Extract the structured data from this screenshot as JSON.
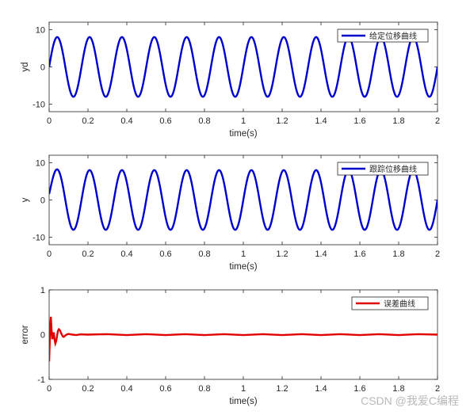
{
  "chart_data": [
    {
      "type": "line",
      "xlabel": "time(s)",
      "ylabel": "yd",
      "xlim": [
        0,
        2
      ],
      "ylim": [
        -12,
        12
      ],
      "xticks": [
        0,
        0.2,
        0.4,
        0.6,
        0.8,
        1,
        1.2,
        1.4,
        1.6,
        1.8,
        2
      ],
      "xtick_labels": [
        "0",
        "0.2",
        "0.4",
        "0.6",
        "0.8",
        "1",
        "1.2",
        "1.4",
        "1.6",
        "1.8",
        "2"
      ],
      "yticks": [
        -10,
        0,
        10
      ],
      "ytick_labels": [
        "-10",
        "0",
        "10"
      ],
      "legend_position": "top-right",
      "series": [
        {
          "name": "给定位移曲线",
          "color": "#0000cc",
          "function": "y = 8*sin(12*pi*t)",
          "amplitude": 8,
          "frequency_hz": 6
        }
      ]
    },
    {
      "type": "line",
      "xlabel": "time(s)",
      "ylabel": "y",
      "xlim": [
        0,
        2
      ],
      "ylim": [
        -12,
        12
      ],
      "xticks": [
        0,
        0.2,
        0.4,
        0.6,
        0.8,
        1,
        1.2,
        1.4,
        1.6,
        1.8,
        2
      ],
      "xtick_labels": [
        "0",
        "0.2",
        "0.4",
        "0.6",
        "0.8",
        "1",
        "1.2",
        "1.4",
        "1.6",
        "1.8",
        "2"
      ],
      "yticks": [
        -10,
        0,
        10
      ],
      "ytick_labels": [
        "-10",
        "0",
        "10"
      ],
      "legend_position": "top-right",
      "series": [
        {
          "name": "跟踪位移曲线",
          "color": "#0000cc",
          "function": "y ≈ 8*sin(12*pi*t) with small initial transient (starts near 1.6)",
          "amplitude": 8,
          "frequency_hz": 6,
          "initial_value": 1.6
        }
      ]
    },
    {
      "type": "line",
      "xlabel": "time(s)",
      "ylabel": "error",
      "xlim": [
        0,
        2
      ],
      "ylim": [
        -1,
        1
      ],
      "xticks": [
        0,
        0.2,
        0.4,
        0.6,
        0.8,
        1,
        1.2,
        1.4,
        1.6,
        1.8,
        2
      ],
      "xtick_labels": [
        "0",
        "0.2",
        "0.4",
        "0.6",
        "0.8",
        "1",
        "1.2",
        "1.4",
        "1.6",
        "1.8",
        "2"
      ],
      "yticks": [
        -1,
        0,
        1
      ],
      "ytick_labels": [
        "-1",
        "0",
        "1"
      ],
      "legend_position": "top-right",
      "series": [
        {
          "name": "误差曲线",
          "color": "#e00000",
          "points": [
            [
              0,
              -0.6
            ],
            [
              0.003,
              -0.2
            ],
            [
              0.006,
              0.2
            ],
            [
              0.009,
              0.4
            ],
            [
              0.012,
              0.15
            ],
            [
              0.016,
              -0.1
            ],
            [
              0.02,
              -0.05
            ],
            [
              0.024,
              0.05
            ],
            [
              0.028,
              -0.12
            ],
            [
              0.032,
              -0.2
            ],
            [
              0.036,
              -0.15
            ],
            [
              0.04,
              -0.05
            ],
            [
              0.045,
              0.08
            ],
            [
              0.05,
              0.12
            ],
            [
              0.055,
              0.1
            ],
            [
              0.06,
              0.05
            ],
            [
              0.065,
              0.0
            ],
            [
              0.07,
              -0.04
            ],
            [
              0.075,
              -0.05
            ],
            [
              0.08,
              -0.03
            ],
            [
              0.09,
              0.0
            ],
            [
              0.1,
              0.015
            ],
            [
              0.12,
              0.0
            ],
            [
              0.14,
              -0.01
            ],
            [
              0.16,
              0.005
            ],
            [
              0.2,
              0.0
            ],
            [
              0.3,
              0.01
            ],
            [
              0.4,
              -0.01
            ],
            [
              0.5,
              0.01
            ],
            [
              0.6,
              -0.01
            ],
            [
              0.7,
              0.01
            ],
            [
              0.8,
              -0.01
            ],
            [
              0.9,
              0.01
            ],
            [
              1.0,
              -0.01
            ],
            [
              1.1,
              0.01
            ],
            [
              1.2,
              -0.01
            ],
            [
              1.3,
              0.01
            ],
            [
              1.4,
              -0.01
            ],
            [
              1.5,
              0.01
            ],
            [
              1.6,
              -0.01
            ],
            [
              1.7,
              0.01
            ],
            [
              1.8,
              -0.01
            ],
            [
              1.9,
              0.01
            ],
            [
              2.0,
              0.0
            ]
          ]
        }
      ]
    }
  ],
  "watermark": "CSDN @我爱C编程"
}
